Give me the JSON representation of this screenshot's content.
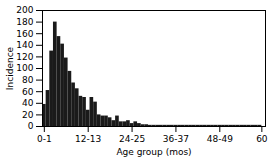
{
  "chart_data": {
    "type": "histogram",
    "xlabel": "Age group (mos)",
    "ylabel": "Incidence",
    "bins": [
      0,
      1,
      2,
      3,
      4,
      5,
      6,
      7,
      8,
      9,
      10,
      11,
      12,
      13,
      14,
      15,
      16,
      17,
      18,
      19,
      20,
      21,
      22,
      23,
      24,
      25,
      26,
      27,
      28,
      29,
      30,
      31,
      32,
      33,
      34,
      35,
      36,
      37,
      38,
      39,
      40,
      41,
      42,
      43,
      44,
      45,
      46,
      47,
      48,
      49,
      50,
      51,
      52,
      53,
      54,
      55,
      56,
      57,
      58,
      59,
      60
    ],
    "values": [
      38,
      62,
      130,
      180,
      155,
      142,
      118,
      95,
      75,
      65,
      52,
      50,
      28,
      50,
      42,
      20,
      18,
      18,
      15,
      10,
      18,
      8,
      8,
      10,
      5,
      8,
      5,
      3,
      3,
      2,
      2,
      2,
      2,
      2,
      2,
      2,
      2,
      2,
      2,
      2,
      2,
      2,
      2,
      2,
      2,
      2,
      2,
      2,
      2,
      2,
      2,
      2,
      2,
      2,
      2,
      2,
      2,
      2,
      2,
      2
    ],
    "color": "#1a1a1a",
    "xlim": [
      0,
      61
    ],
    "xticks": [
      {
        "value": 0.5,
        "label": "0-1"
      },
      {
        "value": 12.5,
        "label": "12-13"
      },
      {
        "value": 24.5,
        "label": "24-25"
      },
      {
        "value": 36.5,
        "label": "36-37"
      },
      {
        "value": 48.5,
        "label": "48-49"
      },
      {
        "value": 60,
        "label": "60"
      }
    ],
    "ylim": [
      0,
      200
    ],
    "yticks": [
      0,
      20,
      40,
      60,
      80,
      100,
      120,
      140,
      160,
      180,
      200
    ],
    "grid": false
  }
}
